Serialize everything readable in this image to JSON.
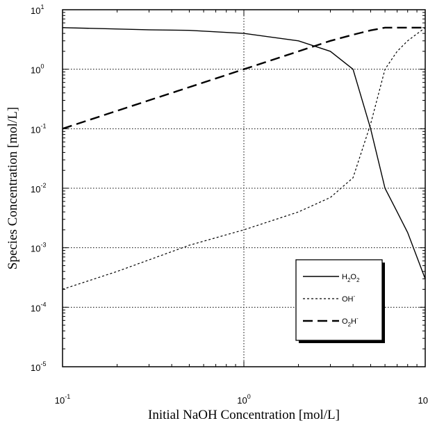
{
  "chart_data": {
    "type": "line",
    "xlabel": "Initial NaOH Concentration [mol/L]",
    "ylabel": "Species Concentration [mol/L]",
    "x_scale": "log",
    "y_scale": "log",
    "xlim": [
      0.1,
      10
    ],
    "ylim": [
      1e-05,
      10
    ],
    "grid": true,
    "x_ticks": [
      {
        "value": 0.1,
        "base": "10",
        "exp": "-1"
      },
      {
        "value": 1,
        "base": "10",
        "exp": "0"
      },
      {
        "value": 10,
        "base": "10",
        "exp": ""
      }
    ],
    "y_ticks": [
      {
        "value": 10,
        "base": "10",
        "exp": "1"
      },
      {
        "value": 1,
        "base": "10",
        "exp": "0"
      },
      {
        "value": 0.1,
        "base": "10",
        "exp": "-1"
      },
      {
        "value": 0.01,
        "base": "10",
        "exp": "-2"
      },
      {
        "value": 0.001,
        "base": "10",
        "exp": "-3"
      },
      {
        "value": 0.0001,
        "base": "10",
        "exp": "-4"
      },
      {
        "value": 1e-05,
        "base": "10",
        "exp": "-5"
      }
    ],
    "legend": {
      "position": "lower-right",
      "entries": [
        {
          "parts": [
            {
              "t": "H",
              "sub": false
            },
            {
              "t": "2",
              "sub": true
            },
            {
              "t": "O",
              "sub": false
            },
            {
              "t": "2",
              "sub": true
            }
          ]
        },
        {
          "parts": [
            {
              "t": "OH",
              "sub": false
            },
            {
              "t": "-",
              "sup": true
            }
          ]
        },
        {
          "parts": [
            {
              "t": "O",
              "sub": false
            },
            {
              "t": "2",
              "sub": true
            },
            {
              "t": "H",
              "sub": false
            },
            {
              "t": "-",
              "sup": true
            }
          ]
        }
      ]
    },
    "series": [
      {
        "style": "solid",
        "points": [
          [
            0.1,
            5
          ],
          [
            0.3,
            4.6
          ],
          [
            0.5,
            4.5
          ],
          [
            1,
            4
          ],
          [
            2,
            3
          ],
          [
            3,
            2
          ],
          [
            4,
            1
          ],
          [
            5,
            0.1
          ],
          [
            6,
            0.01
          ],
          [
            7,
            0.004
          ],
          [
            8,
            0.0018
          ],
          [
            10,
            0.0003
          ]
        ]
      },
      {
        "style": "dotted",
        "points": [
          [
            0.1,
            0.0002
          ],
          [
            0.2,
            0.0004
          ],
          [
            0.5,
            0.0011
          ],
          [
            1,
            0.002
          ],
          [
            2,
            0.004
          ],
          [
            3,
            0.007
          ],
          [
            4,
            0.015
          ],
          [
            5,
            0.12
          ],
          [
            6,
            1
          ],
          [
            7,
            2
          ],
          [
            8,
            3
          ],
          [
            10,
            5
          ]
        ]
      },
      {
        "style": "dashed",
        "points": [
          [
            0.1,
            0.1
          ],
          [
            0.2,
            0.2
          ],
          [
            0.5,
            0.5
          ],
          [
            1,
            1
          ],
          [
            2,
            2
          ],
          [
            3,
            3
          ],
          [
            4,
            3.8
          ],
          [
            5,
            4.5
          ],
          [
            6,
            5
          ],
          [
            10,
            5
          ]
        ]
      }
    ]
  }
}
